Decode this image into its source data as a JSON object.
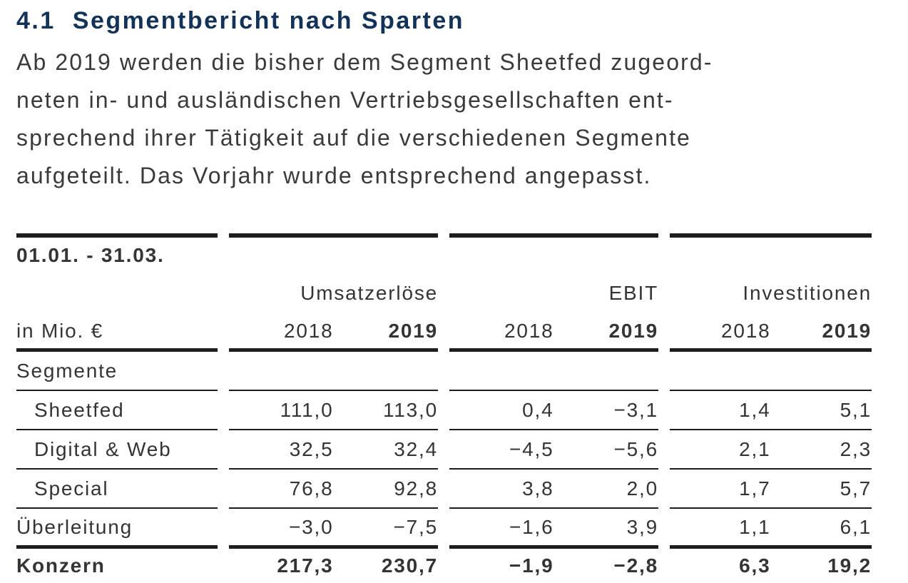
{
  "doc": {
    "heading_number": "4.1",
    "heading_title": "Segmentbericht nach Sparten",
    "paragraph_lines": [
      "Ab 2019 werden die bisher dem Segment Sheetfed zugeord-",
      "neten in- und ausländischen Vertriebsgesellschaften ent-",
      "sprechend ihrer Tätigkeit auf die verschiedenen Segmente",
      "aufgeteilt. Das Vorjahr wurde entsprechend angepasst."
    ]
  },
  "table": {
    "period_label": "01.01. - 31.03.",
    "unit_label": "in Mio. €",
    "column_groups": [
      {
        "label": "Umsatzerlöse",
        "year_prev": "2018",
        "year_curr": "2019"
      },
      {
        "label": "EBIT",
        "year_prev": "2018",
        "year_curr": "2019"
      },
      {
        "label": "Investitionen",
        "year_prev": "2018",
        "year_curr": "2019"
      }
    ],
    "rows": [
      {
        "label": "Segmente",
        "values": [
          "",
          "",
          "",
          "",
          "",
          ""
        ]
      },
      {
        "label": "Sheetfed",
        "values": [
          "111,0",
          "113,0",
          "0,4",
          "−3,1",
          "1,4",
          "5,1"
        ]
      },
      {
        "label": "Digital & Web",
        "values": [
          "32,5",
          "32,4",
          "−4,5",
          "−5,6",
          "2,1",
          "2,3"
        ]
      },
      {
        "label": "Special",
        "values": [
          "76,8",
          "92,8",
          "3,8",
          "2,0",
          "1,7",
          "5,7"
        ]
      },
      {
        "label": "Überleitung",
        "values": [
          "−3,0",
          "−7,5",
          "−1,6",
          "3,9",
          "1,1",
          "6,1"
        ]
      },
      {
        "label": "Konzern",
        "values": [
          "217,3",
          "230,7",
          "−1,9",
          "−2,8",
          "6,3",
          "19,2"
        ]
      }
    ],
    "colors": {
      "heading": "#133258",
      "text": "#343432",
      "rule": "#1d1d1b"
    }
  }
}
